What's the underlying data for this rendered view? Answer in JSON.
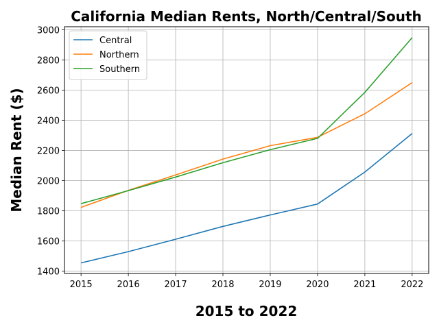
{
  "chart_data": {
    "type": "line",
    "title": "California Median Rents, North/Central/South",
    "xlabel": "2015 to 2022",
    "ylabel": "Median Rent ($)",
    "x": [
      2015,
      2016,
      2017,
      2018,
      2019,
      2020,
      2021,
      2022
    ],
    "xlim": [
      2014.65,
      2022.35
    ],
    "ylim": [
      1385,
      3020
    ],
    "yticks": [
      1400,
      1600,
      1800,
      2000,
      2200,
      2400,
      2600,
      2800,
      3000
    ],
    "grid": true,
    "legend_position": "upper-left",
    "series": [
      {
        "name": "Central",
        "color": "#1f77b4",
        "values": [
          1455,
          1530,
          1612,
          1697,
          1773,
          1845,
          2057,
          2313
        ]
      },
      {
        "name": "Northern",
        "color": "#ff7f0e",
        "values": [
          1823,
          1936,
          2038,
          2143,
          2232,
          2287,
          2443,
          2650
        ]
      },
      {
        "name": "Southern",
        "color": "#2ca02c",
        "values": [
          1848,
          1934,
          2024,
          2119,
          2205,
          2280,
          2585,
          2948
        ]
      }
    ]
  }
}
